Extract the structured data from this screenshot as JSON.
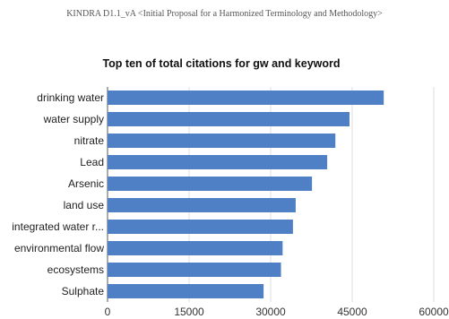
{
  "header": {
    "text": "KINDRA D1.1_vA <Initial Proposal for a Harmonized Terminology and Methodology>"
  },
  "chart_data": {
    "type": "bar",
    "orientation": "horizontal",
    "title": "Top ten of total citations for gw and keyword",
    "xlabel": "",
    "ylabel": "",
    "categories": [
      "drinking water",
      "water supply",
      "nitrate",
      "Lead",
      "Arsenic",
      "land use",
      "integrated water r...",
      "environmental flow",
      "ecosystems",
      "Sulphate"
    ],
    "values": [
      50800,
      44500,
      41900,
      40400,
      37600,
      34600,
      34100,
      32200,
      31900,
      28700
    ],
    "xlim": [
      0,
      60000
    ],
    "xticks": [
      0,
      15000,
      30000,
      45000,
      60000
    ],
    "xtick_labels": [
      "0",
      "15000",
      "30000",
      "45000",
      "60000"
    ],
    "grid": "vertical",
    "legend": "none",
    "colors": {
      "bar": "#4f7fc4",
      "grid": "#dcdcdc",
      "baseline": "#555555"
    }
  }
}
